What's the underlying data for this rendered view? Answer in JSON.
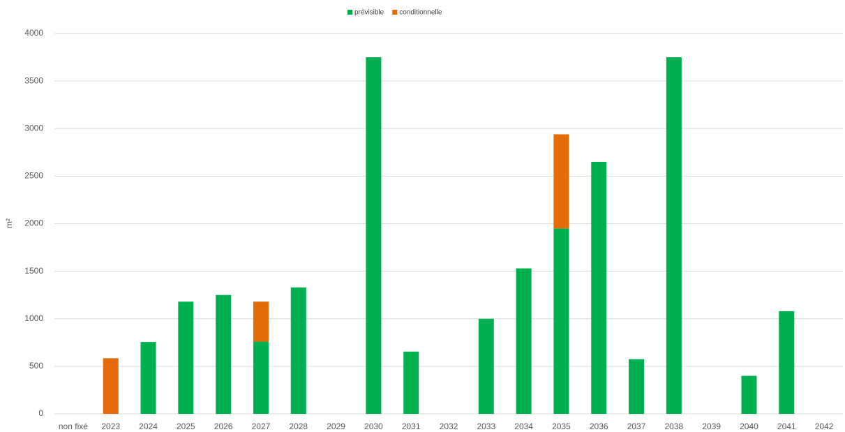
{
  "chart_data": {
    "type": "stacked_bar",
    "categories": [
      "non fixé",
      "2023",
      "2024",
      "2025",
      "2026",
      "2027",
      "2028",
      "2029",
      "2030",
      "2031",
      "2032",
      "2033",
      "2034",
      "2035",
      "2036",
      "2037",
      "2038",
      "2039",
      "2040",
      "2041",
      "2042"
    ],
    "series": [
      {
        "name": "prévisible",
        "color": "#00b050",
        "values": [
          0,
          0,
          755,
          1180,
          1250,
          760,
          1330,
          0,
          3750,
          655,
          0,
          1000,
          1530,
          1950,
          2650,
          575,
          3750,
          0,
          400,
          1080,
          0
        ]
      },
      {
        "name": "conditionnelle",
        "color": "#e36c09",
        "values": [
          0,
          585,
          0,
          0,
          0,
          420,
          0,
          0,
          0,
          0,
          0,
          0,
          0,
          990,
          0,
          0,
          0,
          0,
          0,
          0,
          0
        ]
      }
    ],
    "y_label": "m²",
    "ylim": [
      0,
      4000
    ],
    "yticks": [
      0,
      500,
      1000,
      1500,
      2000,
      2500,
      3000,
      3500,
      4000
    ],
    "grid": true,
    "legend": "top"
  }
}
